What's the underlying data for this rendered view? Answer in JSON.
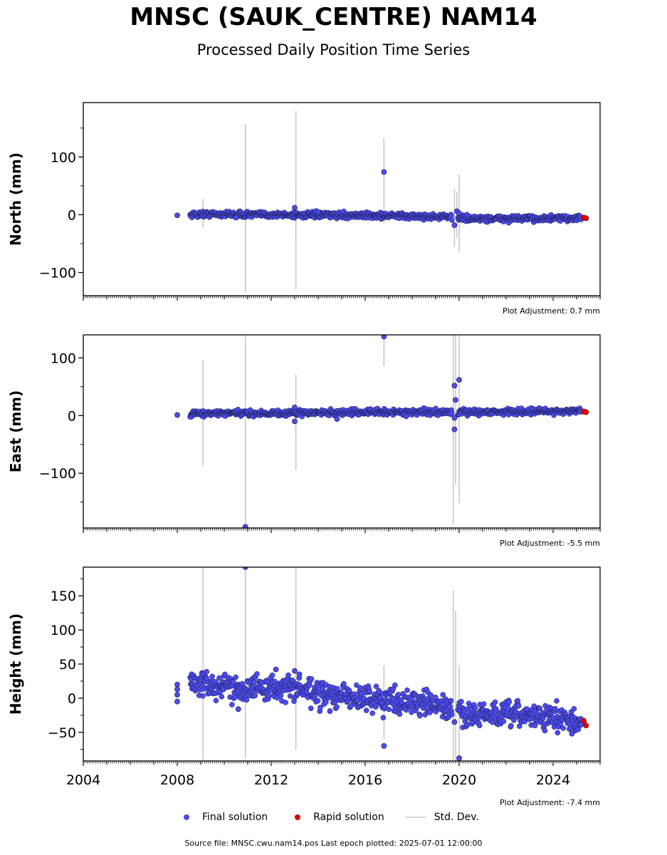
{
  "title": "MNSC (SAUK_CENTRE) NAM14",
  "subtitle": "Processed Daily Position Time Series",
  "footer": "Source file: MNSC.cwu.nam14.pos  Last epoch plotted: 2025-07-01 12:00:00",
  "legend": {
    "final": "Final solution",
    "rapid": "Rapid solution",
    "stddev": "Std. Dev."
  },
  "colors": {
    "final": "#4b4bf0",
    "rapid": "#e00000",
    "stddev": "#c8c8c8",
    "edge": "#1a1a3a"
  },
  "chart_data": [
    {
      "type": "scatter",
      "ylabel": "North (mm)",
      "adjustment": "Plot Adjustment: 0.7 mm",
      "xlim": [
        2004,
        2026
      ],
      "ylim": [
        -140,
        194
      ],
      "yticks": [
        -100,
        0,
        100
      ],
      "ytick_labels": [
        "−100",
        "0",
        "100"
      ],
      "trend": [
        [
          2008.0,
          0
        ],
        [
          2009.5,
          1
        ],
        [
          2012,
          0
        ],
        [
          2016,
          -1
        ],
        [
          2019.8,
          -4
        ],
        [
          2020.5,
          -7
        ],
        [
          2025.5,
          -6
        ]
      ],
      "scatter_mm": 2.5,
      "outliers": [
        [
          2008.0,
          -1
        ],
        [
          2010.5,
          -5
        ],
        [
          2013.0,
          12
        ],
        [
          2014.0,
          5
        ],
        [
          2016.8,
          74
        ],
        [
          2019.8,
          -18
        ],
        [
          2019.9,
          6
        ],
        [
          2020.0,
          3
        ]
      ],
      "error_bars": [
        [
          2009.1,
          -22,
          28
        ],
        [
          2010.9,
          -135,
          157
        ],
        [
          2013.05,
          -130,
          180
        ],
        [
          2013.05,
          -42,
          45
        ],
        [
          2016.8,
          -15,
          132
        ],
        [
          2019.8,
          -55,
          45
        ],
        [
          2019.9,
          -40,
          40
        ],
        [
          2020.0,
          -65,
          70
        ]
      ],
      "rapid": [
        [
          2025.3,
          -5
        ],
        [
          2025.4,
          -6
        ]
      ]
    },
    {
      "type": "scatter",
      "ylabel": "East (mm)",
      "adjustment": "Plot Adjustment: -5.5 mm",
      "xlim": [
        2004,
        2026
      ],
      "ylim": [
        -195,
        140
      ],
      "yticks": [
        -100,
        0,
        100
      ],
      "ytick_labels": [
        "−100",
        "0",
        "100"
      ],
      "trend": [
        [
          2008.0,
          2
        ],
        [
          2009.5,
          4
        ],
        [
          2012,
          4
        ],
        [
          2016,
          6
        ],
        [
          2020,
          6
        ],
        [
          2025.5,
          8
        ]
      ],
      "scatter_mm": 2.5,
      "outliers": [
        [
          2008.0,
          1
        ],
        [
          2013.0,
          14
        ],
        [
          2013.0,
          -10
        ],
        [
          2014.8,
          -6
        ],
        [
          2016.8,
          137
        ],
        [
          2019.8,
          52
        ],
        [
          2019.85,
          27
        ],
        [
          2019.8,
          -24
        ],
        [
          2019.8,
          -4
        ],
        [
          2020.0,
          62
        ],
        [
          2010.9,
          -193
        ]
      ],
      "error_bars": [
        [
          2009.1,
          -88,
          96
        ],
        [
          2010.9,
          -195,
          140
        ],
        [
          2013.05,
          -42,
          72
        ],
        [
          2013.05,
          -95,
          62
        ],
        [
          2016.8,
          86,
          140
        ],
        [
          2019.75,
          -190,
          140
        ],
        [
          2019.85,
          -120,
          140
        ],
        [
          2020.0,
          -152,
          140
        ]
      ],
      "rapid": [
        [
          2025.3,
          7
        ],
        [
          2025.4,
          6
        ]
      ]
    },
    {
      "type": "scatter",
      "ylabel": "Height (mm)",
      "adjustment": "Plot Adjustment: -7.4 mm",
      "xlim": [
        2004,
        2026
      ],
      "ylim": [
        -92,
        192
      ],
      "yticks": [
        -50,
        0,
        50,
        100,
        150
      ],
      "ytick_labels": [
        "−50",
        "0",
        "50",
        "100",
        "150"
      ],
      "xticks": [
        2004,
        2008,
        2012,
        2016,
        2020,
        2024
      ],
      "trend": [
        [
          2008.0,
          10
        ],
        [
          2008.6,
          25
        ],
        [
          2009.5,
          18
        ],
        [
          2011,
          15
        ],
        [
          2012,
          15
        ],
        [
          2013,
          15
        ],
        [
          2014,
          5
        ],
        [
          2016,
          0
        ],
        [
          2018,
          -5
        ],
        [
          2019.5,
          -15
        ],
        [
          2020.5,
          -25
        ],
        [
          2023,
          -25
        ],
        [
          2025.2,
          -33
        ]
      ],
      "scatter_mm": 9,
      "outliers": [
        [
          2008.0,
          20
        ],
        [
          2008.0,
          13
        ],
        [
          2008.0,
          5
        ],
        [
          2008.0,
          -5
        ],
        [
          2010.6,
          -16
        ],
        [
          2010.9,
          192
        ],
        [
          2012.2,
          42
        ],
        [
          2013.0,
          40
        ],
        [
          2013.2,
          35
        ],
        [
          2014.5,
          -19
        ],
        [
          2016.8,
          -70
        ],
        [
          2019.8,
          -35
        ],
        [
          2020.0,
          -88
        ],
        [
          2024.8,
          -52
        ]
      ],
      "error_bars": [
        [
          2009.1,
          -90,
          192
        ],
        [
          2010.9,
          -88,
          192
        ],
        [
          2013.05,
          -75,
          192
        ],
        [
          2013.05,
          -60,
          145
        ],
        [
          2016.8,
          -60,
          48
        ],
        [
          2019.75,
          -92,
          158
        ],
        [
          2019.85,
          -92,
          128
        ],
        [
          2020.0,
          -92,
          48
        ]
      ],
      "rapid": [
        [
          2025.3,
          -33
        ],
        [
          2025.4,
          -40
        ]
      ]
    }
  ]
}
